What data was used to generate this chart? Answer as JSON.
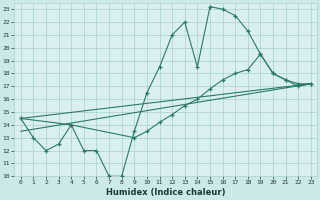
{
  "xlabel": "Humidex (Indice chaleur)",
  "xlim": [
    -0.5,
    23.5
  ],
  "ylim": [
    10,
    23.5
  ],
  "yticks": [
    10,
    11,
    12,
    13,
    14,
    15,
    16,
    17,
    18,
    19,
    20,
    21,
    22,
    23
  ],
  "xticks": [
    0,
    1,
    2,
    3,
    4,
    5,
    6,
    7,
    8,
    9,
    10,
    11,
    12,
    13,
    14,
    15,
    16,
    17,
    18,
    19,
    20,
    21,
    22,
    23
  ],
  "bg_color": "#cde8e8",
  "plot_bg": "#daf0f0",
  "line_color": "#2a7a6a",
  "grid_color": "#aacfcf",
  "curve1_x": [
    0,
    1,
    2,
    3,
    4,
    5,
    6,
    7,
    8,
    9,
    10,
    11,
    12,
    13,
    14,
    15,
    16,
    17,
    18,
    19,
    20,
    21,
    22,
    23
  ],
  "curve1_y": [
    14.5,
    13.0,
    12.0,
    12.5,
    14.0,
    12.0,
    12.0,
    10.0,
    10.0,
    13.5,
    16.5,
    18.5,
    21.0,
    22.0,
    18.5,
    23.2,
    23.0,
    22.5,
    21.3,
    19.5,
    18.0,
    17.5,
    17.0,
    17.2
  ],
  "curve2_x": [
    0,
    4,
    9,
    10,
    11,
    12,
    13,
    14,
    15,
    16,
    17,
    18,
    19,
    20,
    21,
    22,
    23
  ],
  "curve2_y": [
    14.5,
    14.0,
    13.0,
    13.5,
    14.2,
    14.8,
    15.5,
    16.0,
    16.8,
    17.5,
    18.0,
    18.3,
    19.5,
    18.0,
    17.5,
    17.2,
    17.2
  ],
  "line1_x": [
    0,
    23
  ],
  "line1_y": [
    14.5,
    17.2
  ],
  "line2_x": [
    0,
    23
  ],
  "line2_y": [
    13.5,
    17.2
  ]
}
